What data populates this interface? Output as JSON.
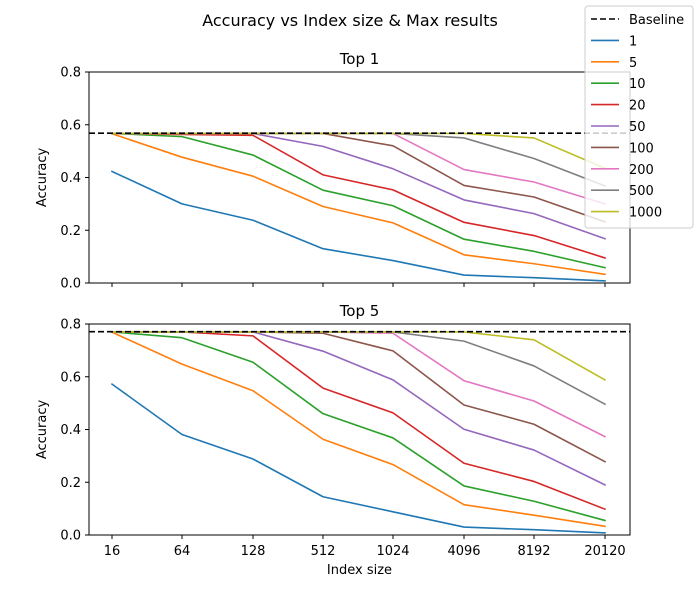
{
  "figure": {
    "suptitle": "Accuracy vs Index size & Max results"
  },
  "legend": {
    "placement": "upper-right",
    "entries": [
      {
        "label": "Baseline",
        "style": "dashed",
        "color": "#000000"
      },
      {
        "label": "1",
        "color": "#1f77b4"
      },
      {
        "label": "5",
        "color": "#ff7f0e"
      },
      {
        "label": "10",
        "color": "#2ca02c"
      },
      {
        "label": "20",
        "color": "#d62728"
      },
      {
        "label": "50",
        "color": "#9467bd"
      },
      {
        "label": "100",
        "color": "#8c564b"
      },
      {
        "label": "200",
        "color": "#e377c2"
      },
      {
        "label": "500",
        "color": "#7f7f7f"
      },
      {
        "label": "1000",
        "color": "#bcbd22"
      }
    ]
  },
  "chart_data": [
    {
      "type": "line",
      "title": "Top 1",
      "xlabel": "",
      "ylabel": "Accuracy",
      "categories": [
        "16",
        "64",
        "128",
        "512",
        "1024",
        "4096",
        "8192",
        "20120"
      ],
      "ylim": [
        0,
        0.8
      ],
      "yticks": [
        "0.0",
        "0.2",
        "0.4",
        "0.6",
        "0.8"
      ],
      "grid": false,
      "baseline": 0.568,
      "series": [
        {
          "name": "1",
          "color": "#1f77b4",
          "values": [
            0.423,
            0.3,
            0.238,
            0.13,
            0.085,
            0.03,
            0.02,
            0.008
          ]
        },
        {
          "name": "5",
          "color": "#ff7f0e",
          "values": [
            0.566,
            0.477,
            0.405,
            0.29,
            0.228,
            0.107,
            0.073,
            0.033
          ]
        },
        {
          "name": "10",
          "color": "#2ca02c",
          "values": [
            0.567,
            0.555,
            0.485,
            0.352,
            0.293,
            0.166,
            0.12,
            0.058
          ]
        },
        {
          "name": "20",
          "color": "#d62728",
          "values": [
            0.567,
            0.563,
            0.56,
            0.41,
            0.353,
            0.23,
            0.18,
            0.095
          ]
        },
        {
          "name": "50",
          "color": "#9467bd",
          "values": [
            0.567,
            0.566,
            0.567,
            0.518,
            0.433,
            0.315,
            0.263,
            0.168
          ]
        },
        {
          "name": "100",
          "color": "#8c564b",
          "values": [
            0.567,
            0.567,
            0.567,
            0.567,
            0.52,
            0.37,
            0.326,
            0.232
          ]
        },
        {
          "name": "200",
          "color": "#e377c2",
          "values": [
            0.567,
            0.567,
            0.567,
            0.567,
            0.567,
            0.43,
            0.383,
            0.3
          ]
        },
        {
          "name": "500",
          "color": "#7f7f7f",
          "values": [
            0.567,
            0.567,
            0.567,
            0.567,
            0.567,
            0.55,
            0.472,
            0.368
          ]
        },
        {
          "name": "1000",
          "color": "#bcbd22",
          "values": [
            0.567,
            0.567,
            0.567,
            0.567,
            0.567,
            0.567,
            0.55,
            0.435
          ]
        }
      ]
    },
    {
      "type": "line",
      "title": "Top 5",
      "xlabel": "Index size",
      "ylabel": "Accuracy",
      "categories": [
        "16",
        "64",
        "128",
        "512",
        "1024",
        "4096",
        "8192",
        "20120"
      ],
      "ylim": [
        0,
        0.8
      ],
      "yticks": [
        "0.0",
        "0.2",
        "0.4",
        "0.6",
        "0.8"
      ],
      "grid": false,
      "baseline": 0.771,
      "series": [
        {
          "name": "1",
          "color": "#1f77b4",
          "values": [
            0.572,
            0.381,
            0.288,
            0.145,
            0.088,
            0.03,
            0.02,
            0.008
          ]
        },
        {
          "name": "5",
          "color": "#ff7f0e",
          "values": [
            0.769,
            0.648,
            0.547,
            0.363,
            0.267,
            0.115,
            0.075,
            0.033
          ]
        },
        {
          "name": "10",
          "color": "#2ca02c",
          "values": [
            0.77,
            0.748,
            0.655,
            0.46,
            0.368,
            0.186,
            0.128,
            0.055
          ]
        },
        {
          "name": "20",
          "color": "#d62728",
          "values": [
            0.77,
            0.77,
            0.755,
            0.557,
            0.463,
            0.272,
            0.203,
            0.098
          ]
        },
        {
          "name": "50",
          "color": "#9467bd",
          "values": [
            0.77,
            0.77,
            0.77,
            0.697,
            0.588,
            0.401,
            0.322,
            0.19
          ]
        },
        {
          "name": "100",
          "color": "#8c564b",
          "values": [
            0.77,
            0.77,
            0.77,
            0.765,
            0.698,
            0.493,
            0.42,
            0.278
          ]
        },
        {
          "name": "200",
          "color": "#e377c2",
          "values": [
            0.77,
            0.77,
            0.77,
            0.77,
            0.765,
            0.585,
            0.508,
            0.373
          ]
        },
        {
          "name": "500",
          "color": "#7f7f7f",
          "values": [
            0.77,
            0.77,
            0.77,
            0.77,
            0.77,
            0.735,
            0.641,
            0.496
          ]
        },
        {
          "name": "1000",
          "color": "#bcbd22",
          "values": [
            0.77,
            0.77,
            0.77,
            0.77,
            0.77,
            0.77,
            0.74,
            0.588
          ]
        }
      ]
    }
  ]
}
